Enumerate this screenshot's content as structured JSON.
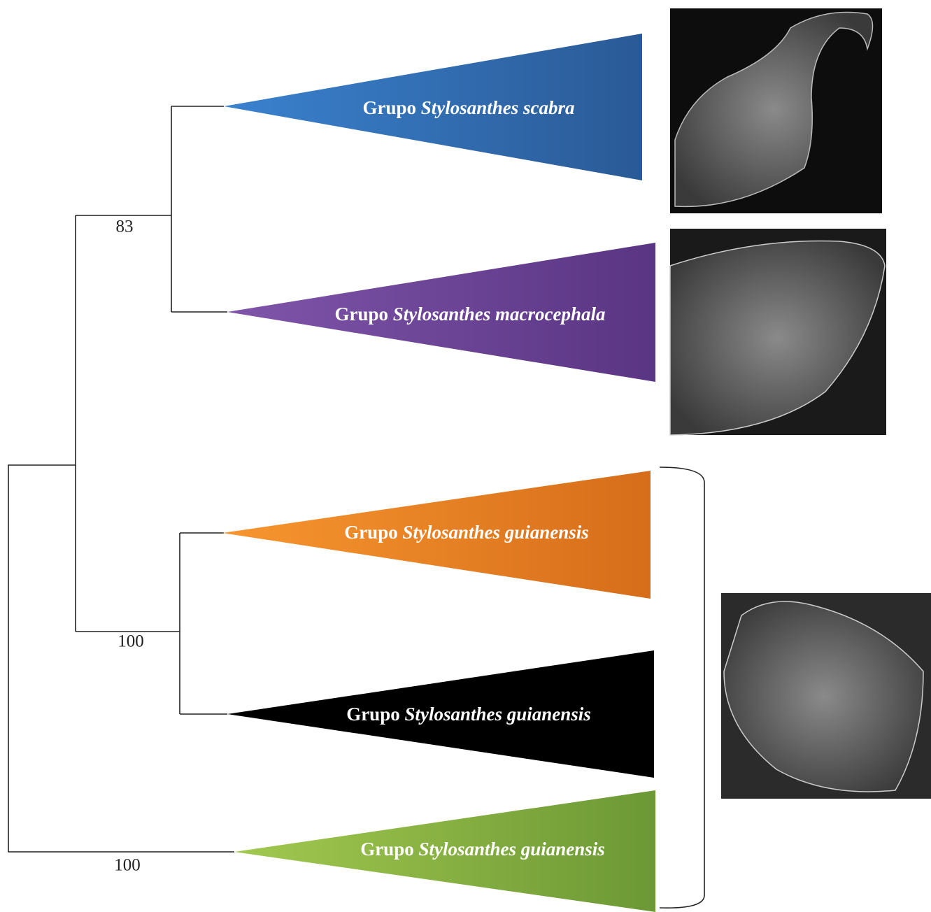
{
  "clades": [
    {
      "prefix": "Grupo",
      "species": "Stylosanthes scabra"
    },
    {
      "prefix": "Grupo",
      "species": "Stylosanthes macrocephala"
    },
    {
      "prefix": "Grupo",
      "species": "Stylosanthes guianensis"
    },
    {
      "prefix": "Grupo",
      "species": "Stylosanthes guianensis"
    },
    {
      "prefix": "Grupo",
      "species": "Stylosanthes guianensis"
    }
  ],
  "support": [
    83,
    100,
    100
  ]
}
